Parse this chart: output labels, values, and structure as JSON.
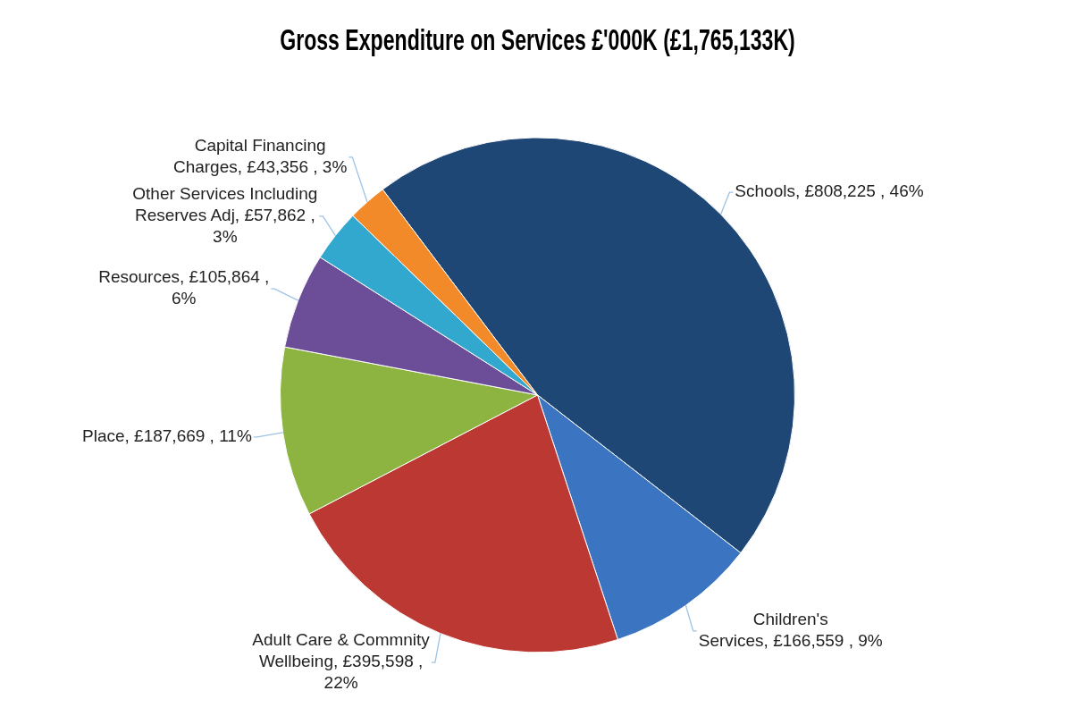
{
  "chart_data": {
    "type": "pie",
    "title": "Gross Expenditure on Services £'000K (£1,765,133K)",
    "categories": [
      "Schools",
      "Children's Services",
      "Adult Care & Commnity Wellbeing",
      "Place",
      "Resources",
      "Other Services Including Reserves Adj",
      "Capital Financing Charges"
    ],
    "values": [
      808225,
      166559,
      395598,
      187669,
      105864,
      57862,
      43356
    ],
    "colors": [
      "#1f4775",
      "#3b74c0",
      "#bb3833",
      "#8db441",
      "#6c4e98",
      "#33a8cf",
      "#f28a2a"
    ],
    "value_labels": [
      "£808,225 , 46%",
      "£166,559 , 9%",
      "£395,598 , 22%",
      "£187,669 , 11%",
      "£105,864 , 6%",
      "£57,862 , 3%",
      "£43,356 , 3%"
    ]
  }
}
